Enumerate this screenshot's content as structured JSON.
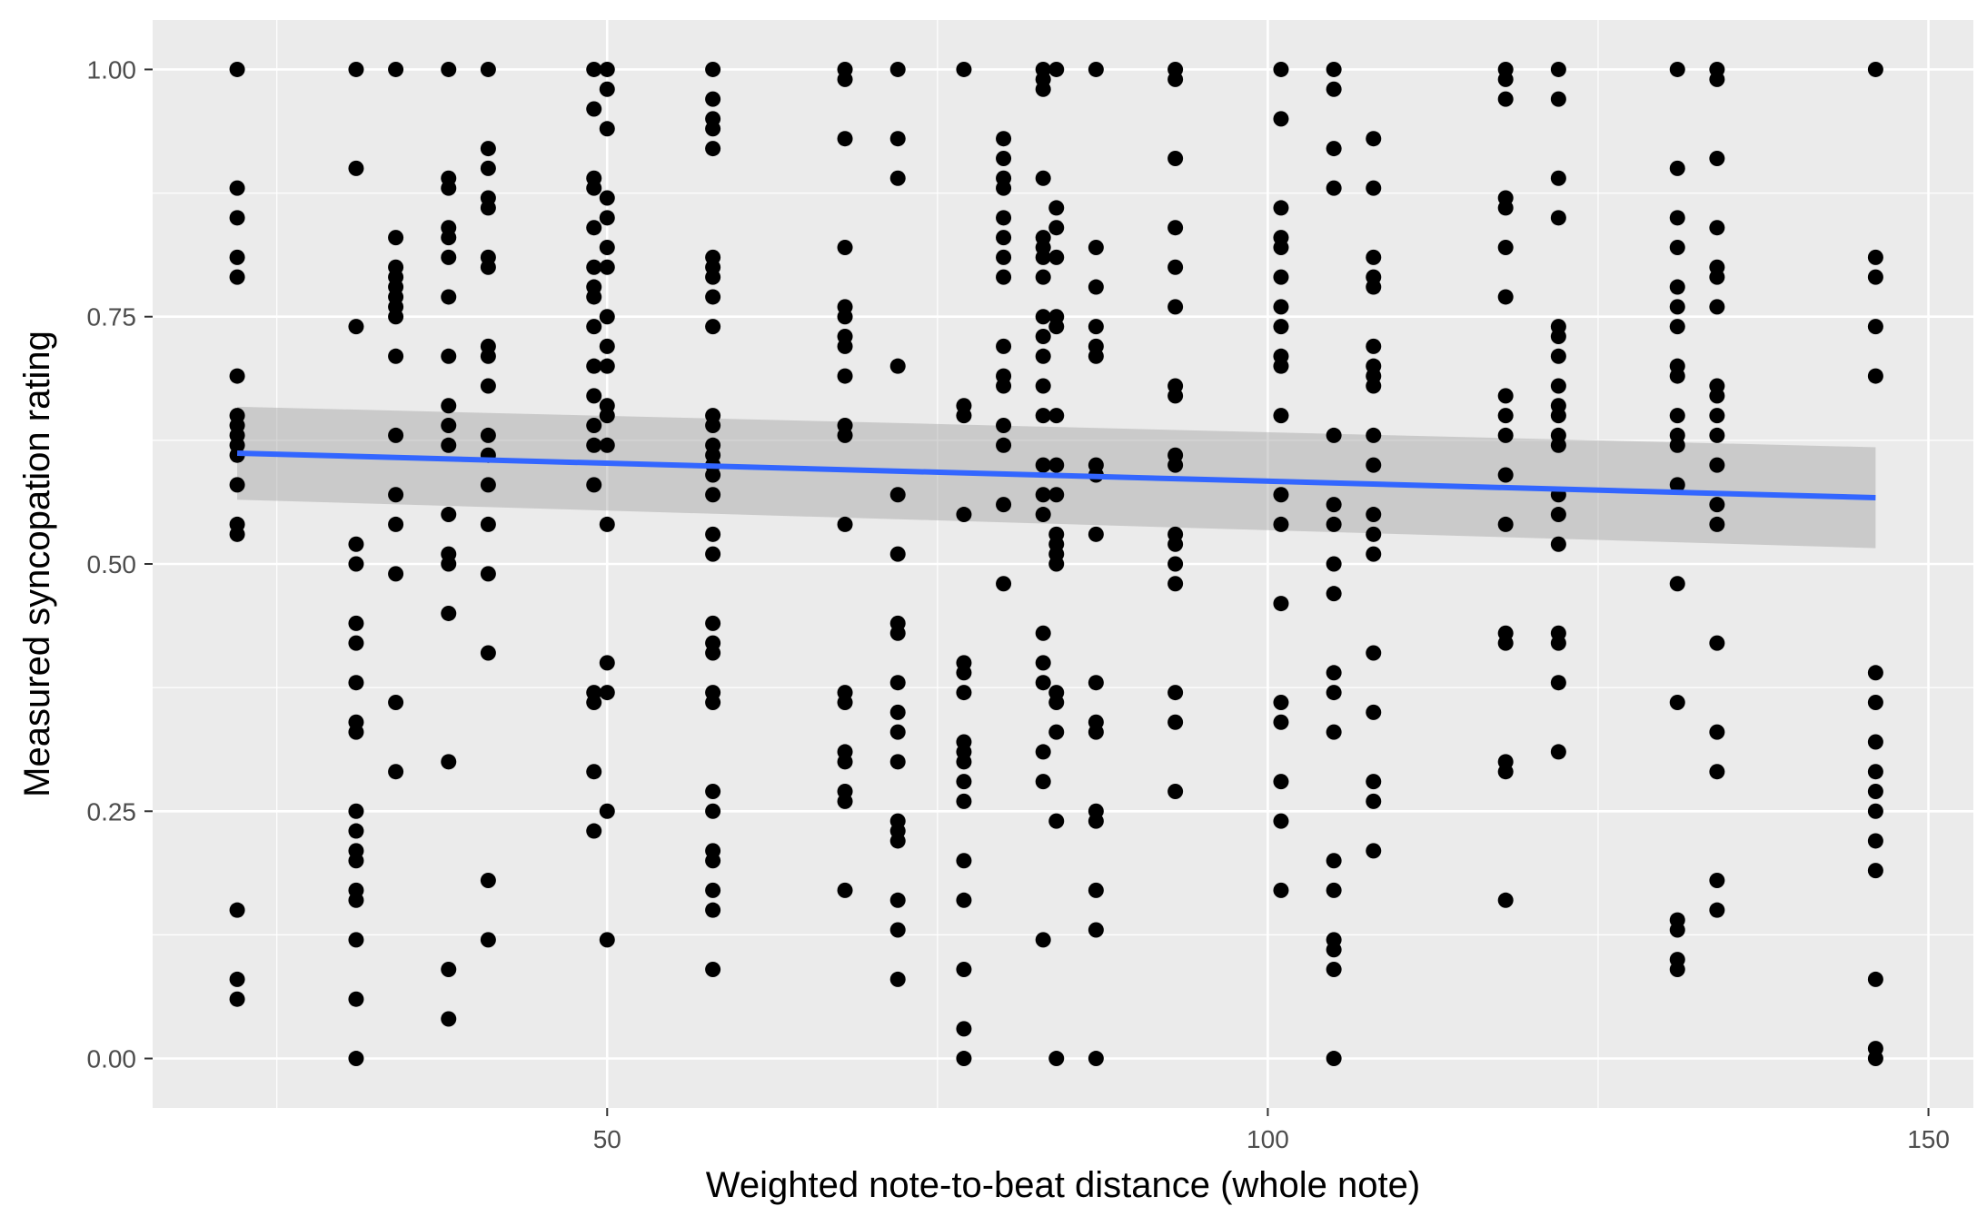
{
  "chart_data": {
    "type": "scatter",
    "title": "",
    "xlabel": "Weighted note-to-beat distance (whole note)",
    "ylabel": "Measured syncopation rating",
    "xlim": [
      15.6,
      153.4
    ],
    "ylim": [
      -0.05,
      1.05
    ],
    "x_ticks": [
      50,
      100,
      150
    ],
    "x_tick_labels": [
      "50",
      "100",
      "150"
    ],
    "y_ticks": [
      0,
      0.25,
      0.5,
      0.75,
      1.0
    ],
    "y_tick_labels": [
      "0.00",
      "0.25",
      "0.50",
      "0.75",
      "1.00"
    ],
    "grid": true,
    "legend": "none",
    "colors": {
      "panel_background": "#ebebeb",
      "grid": "#ffffff",
      "points": "#000000",
      "fit_line": "#3366ff",
      "confidence_band": "#999999"
    },
    "fit": {
      "method": "linear",
      "x": [
        22,
        146
      ],
      "y": [
        0.612,
        0.567
      ],
      "ci_lower": [
        0.565,
        0.516
      ],
      "ci_upper": [
        0.659,
        0.618
      ]
    },
    "points_by_x": [
      {
        "x": 22,
        "y": [
          1.0,
          0.88,
          0.85,
          0.81,
          0.79,
          0.69,
          0.65,
          0.64,
          0.63,
          0.62,
          0.61,
          0.58,
          0.54,
          0.53,
          0.15,
          0.08,
          0.06
        ]
      },
      {
        "x": 31,
        "y": [
          1.0,
          0.9,
          0.74,
          0.52,
          0.5,
          0.44,
          0.42,
          0.38,
          0.34,
          0.33,
          0.25,
          0.23,
          0.21,
          0.2,
          0.17,
          0.16,
          0.12,
          0.06,
          0.0
        ]
      },
      {
        "x": 34,
        "y": [
          1.0,
          0.83,
          0.8,
          0.79,
          0.78,
          0.77,
          0.76,
          0.75,
          0.71,
          0.63,
          0.57,
          0.54,
          0.49,
          0.36,
          0.29
        ]
      },
      {
        "x": 38,
        "y": [
          1.0,
          0.89,
          0.88,
          0.84,
          0.83,
          0.81,
          0.77,
          0.71,
          0.66,
          0.64,
          0.62,
          0.55,
          0.51,
          0.5,
          0.45,
          0.3,
          0.09,
          0.04
        ]
      },
      {
        "x": 41,
        "y": [
          1.0,
          0.92,
          0.9,
          0.87,
          0.86,
          0.81,
          0.8,
          0.72,
          0.71,
          0.68,
          0.63,
          0.61,
          0.58,
          0.54,
          0.49,
          0.41,
          0.18,
          0.12
        ]
      },
      {
        "x": 49,
        "y": [
          1.0,
          0.96,
          0.89,
          0.88,
          0.84,
          0.8,
          0.78,
          0.77,
          0.74,
          0.7,
          0.67,
          0.64,
          0.62,
          0.58,
          0.37,
          0.36,
          0.29,
          0.23
        ]
      },
      {
        "x": 50,
        "y": [
          1.0,
          0.98,
          0.94,
          0.87,
          0.85,
          0.82,
          0.8,
          0.75,
          0.72,
          0.7,
          0.66,
          0.65,
          0.62,
          0.54,
          0.4,
          0.37,
          0.25,
          0.12
        ]
      },
      {
        "x": 58,
        "y": [
          1.0,
          0.97,
          0.95,
          0.94,
          0.92,
          0.81,
          0.8,
          0.79,
          0.77,
          0.74,
          0.65,
          0.64,
          0.62,
          0.61,
          0.6,
          0.59,
          0.57,
          0.53,
          0.51,
          0.44,
          0.42,
          0.41,
          0.37,
          0.36,
          0.27,
          0.25,
          0.21,
          0.2,
          0.17,
          0.15,
          0.09
        ]
      },
      {
        "x": 68,
        "y": [
          1.0,
          0.99,
          0.93,
          0.82,
          0.76,
          0.75,
          0.73,
          0.72,
          0.69,
          0.64,
          0.63,
          0.54,
          0.37,
          0.36,
          0.31,
          0.3,
          0.27,
          0.26,
          0.17
        ]
      },
      {
        "x": 72,
        "y": [
          1.0,
          0.93,
          0.89,
          0.7,
          0.57,
          0.51,
          0.44,
          0.43,
          0.38,
          0.35,
          0.33,
          0.3,
          0.24,
          0.23,
          0.22,
          0.16,
          0.13,
          0.08
        ]
      },
      {
        "x": 77,
        "y": [
          1.0,
          0.66,
          0.65,
          0.55,
          0.4,
          0.39,
          0.37,
          0.32,
          0.31,
          0.3,
          0.28,
          0.26,
          0.2,
          0.16,
          0.09,
          0.03,
          0.0
        ]
      },
      {
        "x": 80,
        "y": [
          0.93,
          0.91,
          0.89,
          0.88,
          0.85,
          0.83,
          0.81,
          0.79,
          0.72,
          0.69,
          0.68,
          0.64,
          0.62,
          0.56,
          0.48
        ]
      },
      {
        "x": 83,
        "y": [
          1.0,
          0.99,
          0.98,
          0.89,
          0.83,
          0.82,
          0.81,
          0.79,
          0.75,
          0.73,
          0.71,
          0.68,
          0.65,
          0.6,
          0.57,
          0.55,
          0.43,
          0.4,
          0.38,
          0.31,
          0.28,
          0.12
        ]
      },
      {
        "x": 84,
        "y": [
          1.0,
          0.86,
          0.84,
          0.81,
          0.75,
          0.74,
          0.65,
          0.6,
          0.57,
          0.53,
          0.52,
          0.51,
          0.5,
          0.37,
          0.36,
          0.33,
          0.24,
          0.0
        ]
      },
      {
        "x": 87,
        "y": [
          1.0,
          0.82,
          0.78,
          0.74,
          0.72,
          0.71,
          0.6,
          0.59,
          0.53,
          0.38,
          0.34,
          0.33,
          0.25,
          0.24,
          0.17,
          0.13,
          0.0
        ]
      },
      {
        "x": 93,
        "y": [
          1.0,
          0.99,
          0.91,
          0.84,
          0.8,
          0.76,
          0.68,
          0.67,
          0.61,
          0.6,
          0.53,
          0.52,
          0.5,
          0.48,
          0.37,
          0.34,
          0.27
        ]
      },
      {
        "x": 101,
        "y": [
          1.0,
          0.95,
          0.86,
          0.83,
          0.82,
          0.79,
          0.76,
          0.74,
          0.71,
          0.7,
          0.65,
          0.57,
          0.54,
          0.46,
          0.36,
          0.34,
          0.28,
          0.24,
          0.17
        ]
      },
      {
        "x": 105,
        "y": [
          1.0,
          0.98,
          0.92,
          0.88,
          0.63,
          0.56,
          0.54,
          0.5,
          0.47,
          0.39,
          0.37,
          0.33,
          0.2,
          0.17,
          0.12,
          0.11,
          0.09,
          0.0
        ]
      },
      {
        "x": 108,
        "y": [
          0.93,
          0.88,
          0.81,
          0.79,
          0.78,
          0.72,
          0.7,
          0.69,
          0.68,
          0.63,
          0.6,
          0.55,
          0.53,
          0.51,
          0.41,
          0.35,
          0.28,
          0.26,
          0.21
        ]
      },
      {
        "x": 118,
        "y": [
          1.0,
          0.99,
          0.97,
          0.87,
          0.86,
          0.82,
          0.77,
          0.67,
          0.65,
          0.63,
          0.59,
          0.54,
          0.43,
          0.42,
          0.3,
          0.29,
          0.16
        ]
      },
      {
        "x": 122,
        "y": [
          1.0,
          0.97,
          0.89,
          0.85,
          0.74,
          0.73,
          0.71,
          0.68,
          0.66,
          0.65,
          0.63,
          0.62,
          0.57,
          0.55,
          0.52,
          0.43,
          0.42,
          0.38,
          0.31
        ]
      },
      {
        "x": 131,
        "y": [
          1.0,
          0.9,
          0.85,
          0.82,
          0.78,
          0.76,
          0.74,
          0.7,
          0.69,
          0.65,
          0.63,
          0.62,
          0.58,
          0.48,
          0.36,
          0.14,
          0.13,
          0.1,
          0.09
        ]
      },
      {
        "x": 134,
        "y": [
          1.0,
          0.99,
          0.91,
          0.84,
          0.8,
          0.79,
          0.76,
          0.68,
          0.67,
          0.65,
          0.63,
          0.6,
          0.56,
          0.54,
          0.42,
          0.33,
          0.29,
          0.18,
          0.15
        ]
      },
      {
        "x": 146,
        "y": [
          1.0,
          0.81,
          0.79,
          0.74,
          0.69,
          0.39,
          0.36,
          0.32,
          0.29,
          0.27,
          0.25,
          0.22,
          0.19,
          0.08,
          0.01,
          0.0
        ]
      }
    ]
  }
}
